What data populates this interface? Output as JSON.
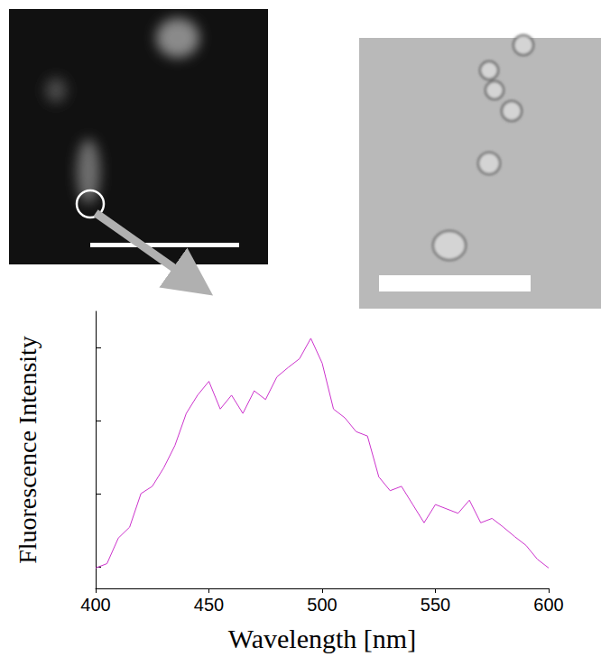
{
  "chart_data": {
    "type": "line",
    "x_label": "Wavelength [nm]",
    "y_label": "Fluorescence Intensity",
    "x": [
      400,
      405,
      410,
      415,
      420,
      425,
      430,
      435,
      440,
      445,
      450,
      455,
      460,
      465,
      470,
      475,
      480,
      485,
      490,
      495,
      500,
      505,
      510,
      515,
      520,
      525,
      530,
      535,
      540,
      545,
      550,
      555,
      560,
      565,
      570,
      575,
      580,
      585,
      590,
      595,
      600
    ],
    "values": [
      0.98,
      1.04,
      1.39,
      1.54,
      2.0,
      2.1,
      2.35,
      2.66,
      3.1,
      3.35,
      3.54,
      3.16,
      3.35,
      3.1,
      3.41,
      3.29,
      3.6,
      3.73,
      3.85,
      4.13,
      3.79,
      3.16,
      3.04,
      2.85,
      2.79,
      2.23,
      2.04,
      2.1,
      1.85,
      1.6,
      1.85,
      1.79,
      1.73,
      1.91,
      1.6,
      1.66,
      1.54,
      1.41,
      1.29,
      1.1,
      0.98
    ],
    "color": "#cc33cc",
    "xlim": [
      400,
      600
    ],
    "xticks": [
      400,
      450,
      500,
      550,
      600
    ],
    "ylim": [
      0.7,
      4.5
    ],
    "yticks": [
      1,
      2,
      3,
      4
    ],
    "tick_labels": "x",
    "grid": false
  }
}
